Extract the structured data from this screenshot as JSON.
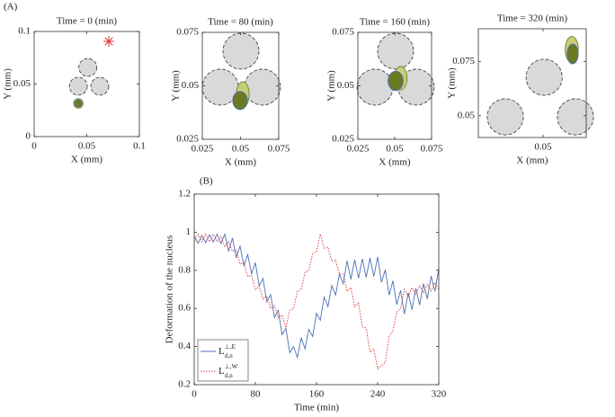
{
  "chart_data": [
    {
      "type": "shapes",
      "panel_label": "(A)",
      "title": "Time = 0 (min)",
      "xlabel": "X (mm)",
      "ylabel": "Y (mm)",
      "xlim": [
        0,
        0.1
      ],
      "ylim": [
        0,
        0.1
      ],
      "xticks": [
        0,
        0.05,
        0.1
      ],
      "yticks": [
        0,
        0.05,
        0.1
      ],
      "circles": [
        {
          "x": 0.051,
          "y": 0.0658,
          "r": 0.0085
        },
        {
          "x": 0.042,
          "y": 0.0479,
          "r": 0.0085
        },
        {
          "x": 0.0624,
          "y": 0.0479,
          "r": 0.0085
        }
      ],
      "cell": {
        "x": 0.042,
        "y": 0.0316,
        "rx": 0.0045,
        "ry": 0.0045
      },
      "nucleus": {
        "x": 0.042,
        "y": 0.0316,
        "rx": 0.0034,
        "ry": 0.0034
      },
      "star": {
        "x": 0.071,
        "y": 0.0906,
        "color": "#e03030"
      }
    },
    {
      "type": "shapes",
      "title": "Time = 80 (min)",
      "xlabel": "X (mm)",
      "ylabel": "Y (mm)",
      "xlim": [
        0.025,
        0.075
      ],
      "ylim": [
        0.025,
        0.075
      ],
      "xticks": [
        0.025,
        0.05,
        0.075
      ],
      "yticks": [
        0.025,
        0.05,
        0.075
      ],
      "circles": [
        {
          "x": 0.0503,
          "y": 0.0662,
          "r": 0.0084
        },
        {
          "x": 0.0368,
          "y": 0.0494,
          "r": 0.0084
        },
        {
          "x": 0.0644,
          "y": 0.0494,
          "r": 0.0084
        }
      ],
      "cell": {
        "x": 0.0515,
        "y": 0.046,
        "rx": 0.003,
        "ry": 0.0059
      },
      "nucleus": {
        "x": 0.0497,
        "y": 0.0431,
        "rx": 0.0034,
        "ry": 0.0042
      }
    },
    {
      "type": "shapes",
      "title": "Time = 160 (min)",
      "xlabel": "X (mm)",
      "ylabel": "Y (mm)",
      "xlim": [
        0.025,
        0.075
      ],
      "ylim": [
        0.025,
        0.075
      ],
      "xticks": [
        0.025,
        0.05,
        0.075
      ],
      "yticks": [
        0.025,
        0.05,
        0.075
      ],
      "circles": [
        {
          "x": 0.0506,
          "y": 0.0662,
          "r": 0.0084
        },
        {
          "x": 0.0366,
          "y": 0.0494,
          "r": 0.0084
        },
        {
          "x": 0.0646,
          "y": 0.0494,
          "r": 0.0084
        }
      ],
      "cell": {
        "x": 0.054,
        "y": 0.0536,
        "rx": 0.003,
        "ry": 0.0055
      },
      "nucleus": {
        "x": 0.0506,
        "y": 0.0523,
        "rx": 0.0035,
        "ry": 0.0045
      }
    },
    {
      "type": "shapes",
      "title": "Time = 320 (min)",
      "xlabel": "X (mm)",
      "ylabel": "Y (mm)",
      "xlim": [
        0.02,
        0.07
      ],
      "ylim": [
        0.04,
        0.09
      ],
      "xticks": [
        0.05
      ],
      "yticks": [
        0.05,
        0.075
      ],
      "circles": [
        {
          "x": 0.0505,
          "y": 0.0677,
          "r": 0.0083
        },
        {
          "x": 0.0325,
          "y": 0.0495,
          "r": 0.0083
        },
        {
          "x": 0.065,
          "y": 0.0495,
          "r": 0.0083
        }
      ],
      "cell": {
        "x": 0.0633,
        "y": 0.0805,
        "rx": 0.003,
        "ry": 0.006
      },
      "nucleus": {
        "x": 0.0637,
        "y": 0.0784,
        "rx": 0.0025,
        "ry": 0.0045
      }
    },
    {
      "type": "line",
      "panel_label": "(B)",
      "xlabel": "Time (min)",
      "ylabel": "Deformation of the nucleus",
      "xlim": [
        0,
        320
      ],
      "ylim": [
        0.2,
        1.2
      ],
      "xticks": [
        0,
        80,
        160,
        240,
        320
      ],
      "yticks": [
        0.2,
        0.4,
        0.6,
        0.8,
        1,
        1.2
      ],
      "legend": "lower left",
      "x": [
        0,
        5,
        10,
        15,
        20,
        25,
        30,
        35,
        40,
        45,
        50,
        55,
        60,
        65,
        70,
        75,
        80,
        85,
        90,
        95,
        100,
        105,
        110,
        115,
        120,
        125,
        130,
        135,
        140,
        145,
        150,
        155,
        160,
        165,
        170,
        175,
        180,
        185,
        190,
        195,
        200,
        205,
        210,
        215,
        220,
        225,
        230,
        235,
        240,
        245,
        250,
        255,
        260,
        265,
        270,
        275,
        280,
        285,
        290,
        295,
        300,
        305,
        310,
        315,
        320
      ],
      "series": [
        {
          "name": "L",
          "name_sup": "⊥,E",
          "name_sub": "d,n",
          "color": "#4a6fb5",
          "dash": "solid",
          "values": [
            0.98,
            0.942,
            0.983,
            0.945,
            0.987,
            0.948,
            0.99,
            0.94,
            0.99,
            0.9,
            0.97,
            0.868,
            0.927,
            0.825,
            0.883,
            0.782,
            0.84,
            0.718,
            0.757,
            0.635,
            0.673,
            0.552,
            0.59,
            0.463,
            0.495,
            0.368,
            0.4,
            0.343,
            0.445,
            0.388,
            0.49,
            0.453,
            0.575,
            0.538,
            0.66,
            0.61,
            0.72,
            0.67,
            0.78,
            0.73,
            0.85,
            0.753,
            0.855,
            0.758,
            0.86,
            0.763,
            0.865,
            0.768,
            0.87,
            0.737,
            0.803,
            0.67,
            0.745,
            0.62,
            0.695,
            0.57,
            0.682,
            0.594,
            0.706,
            0.618,
            0.73,
            0.65,
            0.77,
            0.69,
            0.81
          ]
        },
        {
          "name": "L",
          "name_sup": "⊥,W",
          "name_sub": "d,n",
          "color": "#e03030",
          "dash": "dotted",
          "values": [
            0.95,
            0.99,
            0.95,
            0.99,
            0.95,
            0.99,
            0.95,
            0.978,
            0.925,
            0.953,
            0.9,
            0.907,
            0.833,
            0.84,
            0.767,
            0.773,
            0.7,
            0.715,
            0.65,
            0.665,
            0.6,
            0.615,
            0.55,
            0.565,
            0.5,
            0.59,
            0.6,
            0.69,
            0.7,
            0.79,
            0.8,
            0.89,
            0.9,
            0.99,
            0.916,
            0.922,
            0.848,
            0.854,
            0.78,
            0.78,
            0.69,
            0.71,
            0.61,
            0.63,
            0.503,
            0.497,
            0.37,
            0.387,
            0.283,
            0.3,
            0.317,
            0.453,
            0.48,
            0.58,
            0.6,
            0.7,
            0.664,
            0.709,
            0.673,
            0.718,
            0.682,
            0.727,
            0.691,
            0.736,
            0.7
          ]
        }
      ]
    }
  ]
}
